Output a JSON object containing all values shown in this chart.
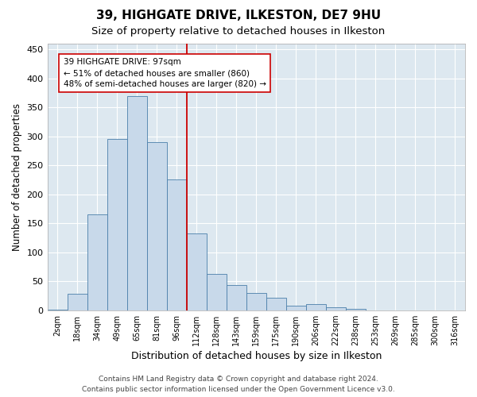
{
  "title": "39, HIGHGATE DRIVE, ILKESTON, DE7 9HU",
  "subtitle": "Size of property relative to detached houses in Ilkeston",
  "xlabel": "Distribution of detached houses by size in Ilkeston",
  "ylabel": "Number of detached properties",
  "categories": [
    "2sqm",
    "18sqm",
    "34sqm",
    "49sqm",
    "65sqm",
    "81sqm",
    "96sqm",
    "112sqm",
    "128sqm",
    "143sqm",
    "159sqm",
    "175sqm",
    "190sqm",
    "206sqm",
    "222sqm",
    "238sqm",
    "253sqm",
    "269sqm",
    "285sqm",
    "300sqm",
    "316sqm"
  ],
  "values": [
    1,
    28,
    165,
    295,
    370,
    290,
    225,
    133,
    62,
    43,
    30,
    21,
    8,
    11,
    5,
    2,
    0,
    0,
    0,
    0,
    0
  ],
  "bar_color": "#c8d9ea",
  "bar_edge_color": "#4a7faa",
  "property_line_color": "#cc0000",
  "annotation_line1": "39 HIGHGATE DRIVE: 97sqm",
  "annotation_line2": "← 51% of detached houses are smaller (860)",
  "annotation_line3": "48% of semi-detached houses are larger (820) →",
  "annotation_box_color": "#ffffff",
  "annotation_box_edge": "#cc0000",
  "ylim": [
    0,
    460
  ],
  "yticks": [
    0,
    50,
    100,
    150,
    200,
    250,
    300,
    350,
    400,
    450
  ],
  "background_color": "#dde8f0",
  "grid_color": "#ffffff",
  "footer_line1": "Contains HM Land Registry data © Crown copyright and database right 2024.",
  "footer_line2": "Contains public sector information licensed under the Open Government Licence v3.0.",
  "title_fontsize": 11,
  "subtitle_fontsize": 9.5,
  "xlabel_fontsize": 9,
  "ylabel_fontsize": 8.5,
  "tick_fontsize": 7,
  "footer_fontsize": 6.5
}
